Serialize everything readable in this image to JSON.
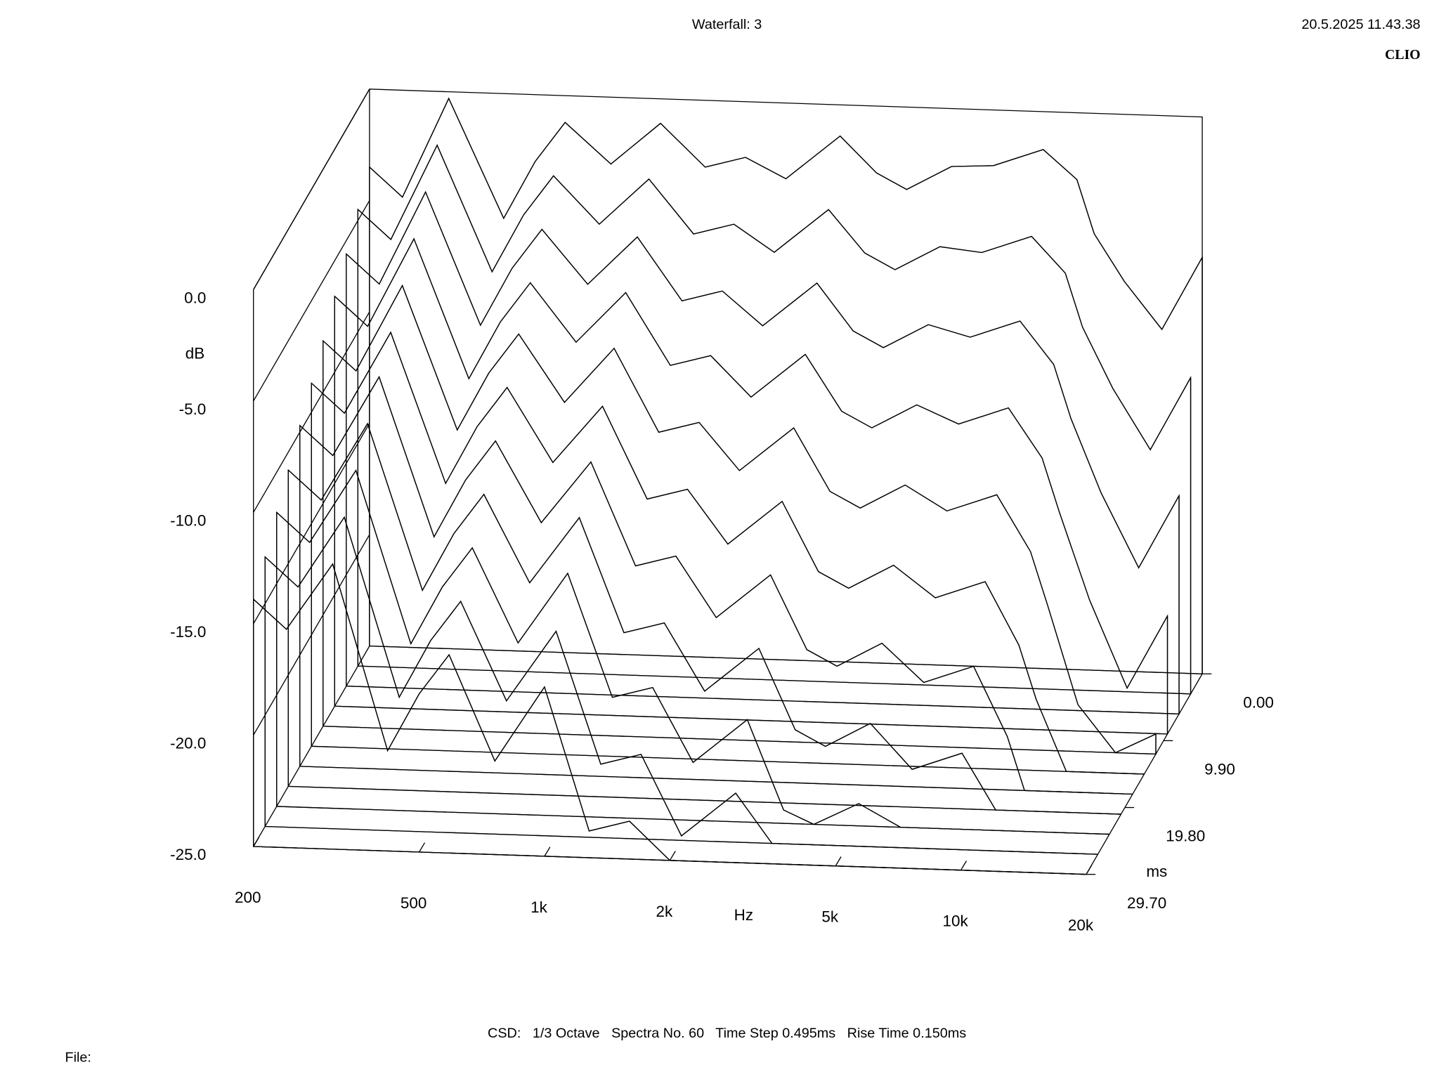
{
  "chart_data": {
    "type": "waterfall",
    "title": "Waterfall: 3",
    "date": "20.5.2025 11.43.38",
    "brand": "CLIO",
    "ylabel": "dB",
    "xlabel": "Hz",
    "zlabel": "ms",
    "footer": "CSD:   1/3 Octave   Spectra No. 60   Time Step 0.495ms   Rise Time 0.150ms",
    "file_label": "File:",
    "color": "#000000",
    "xlog": true,
    "xlim": [
      200,
      20000
    ],
    "xticks": [
      200,
      500,
      {
        "value": 1000,
        "label": "1k"
      },
      {
        "value": 2000,
        "label": "2k"
      },
      {
        "value": 5000,
        "label": "5k"
      },
      {
        "value": 10000,
        "label": "10k"
      },
      {
        "value": 20000,
        "label": "20k"
      }
    ],
    "ylim": [
      -25,
      0
    ],
    "yticks": [
      {
        "value": 0,
        "label": "0.0"
      },
      {
        "value": -5,
        "label": "-5.0"
      },
      {
        "value": -10,
        "label": "-10.0"
      },
      {
        "value": -15,
        "label": "-15.0"
      },
      {
        "value": -20,
        "label": "-20.0"
      },
      {
        "value": -25,
        "label": "-25.0"
      }
    ],
    "zlim": [
      0,
      29.7
    ],
    "zticks": [
      {
        "value": 0,
        "label": "0.00"
      },
      {
        "value": 9.9,
        "label": "9.90"
      },
      {
        "value": 19.8,
        "label": "19.80"
      },
      {
        "value": 29.7,
        "label": "29.70"
      }
    ],
    "x": [
      200,
      240,
      310,
      420,
      500,
      590,
      760,
      1000,
      1280,
      1600,
      2000,
      2700,
      3300,
      3900,
      5000,
      6300,
      8300,
      10000,
      11000,
      13000,
      16000,
      20000
    ],
    "z": [
      0,
      2.97,
      5.94,
      8.91,
      11.88,
      14.85,
      17.82,
      20.79,
      23.76,
      26.73,
      29.7
    ],
    "series": [
      {
        "values": [
          -3.5,
          -4.8,
          -0.3,
          -5.6,
          -3.0,
          -1.2,
          -3.0,
          -1.1,
          -3.0,
          -2.5,
          -3.4,
          -1.4,
          -3.0,
          -3.7,
          -2.6,
          -2.5,
          -1.7,
          -3.0,
          -5.4,
          -7.5,
          -9.6,
          -6.3
        ]
      },
      {
        "values": [
          -4.5,
          -5.8,
          -1.5,
          -7.1,
          -4.5,
          -2.7,
          -4.8,
          -2.7,
          -5.1,
          -4.6,
          -5.8,
          -3.8,
          -5.7,
          -6.4,
          -5.3,
          -5.5,
          -4.7,
          -6.3,
          -8.7,
          -11.4,
          -14.1,
          -10.8
        ]
      },
      {
        "values": [
          -5.6,
          -6.9,
          -2.7,
          -8.6,
          -6.0,
          -4.2,
          -6.6,
          -4.4,
          -7.2,
          -6.7,
          -8.2,
          -6.2,
          -8.3,
          -9.0,
          -7.9,
          -8.4,
          -7.6,
          -9.5,
          -11.9,
          -15.2,
          -18.5,
          -15.2
        ]
      },
      {
        "values": [
          -6.6,
          -7.9,
          -3.9,
          -10.1,
          -7.5,
          -5.7,
          -8.3,
          -6.0,
          -9.2,
          -8.7,
          -10.5,
          -8.5,
          -11.0,
          -11.7,
          -10.6,
          -11.4,
          -10.6,
          -12.8,
          -15.2,
          -19.1,
          -23.0,
          -19.7
        ]
      },
      {
        "values": [
          -7.7,
          -9.0,
          -5.1,
          -11.5,
          -8.9,
          -7.1,
          -10.1,
          -7.6,
          -11.3,
          -10.8,
          -12.9,
          -10.9,
          -13.7,
          -14.4,
          -13.3,
          -14.4,
          -13.6,
          -16.1,
          -18.5,
          -22.9,
          -25.0,
          -24.1
        ]
      },
      {
        "values": [
          -8.7,
          -10.0,
          -6.3,
          -13.0,
          -10.4,
          -8.6,
          -11.9,
          -9.3,
          -13.4,
          -12.9,
          -15.3,
          -13.3,
          -16.4,
          -17.1,
          -16.0,
          -17.4,
          -16.6,
          -19.4,
          -21.8,
          -25.0,
          -25.0,
          -25.0
        ]
      },
      {
        "values": [
          -9.7,
          -11.0,
          -7.4,
          -14.5,
          -11.9,
          -10.1,
          -13.7,
          -10.9,
          -15.5,
          -15.0,
          -17.7,
          -15.7,
          -19.0,
          -19.7,
          -18.6,
          -20.3,
          -19.5,
          -22.6,
          -25.0,
          -25.0,
          -25.0,
          -25.0
        ]
      },
      {
        "values": [
          -10.8,
          -12.1,
          -8.6,
          -16.0,
          -13.4,
          -11.6,
          -15.5,
          -12.5,
          -17.6,
          -17.1,
          -20.1,
          -18.1,
          -21.7,
          -22.4,
          -21.3,
          -23.3,
          -22.5,
          -25.0,
          -25.0,
          -25.0,
          -25.0,
          -25.0
        ]
      },
      {
        "values": [
          -11.8,
          -13.1,
          -9.8,
          -17.5,
          -14.9,
          -13.1,
          -17.3,
          -14.1,
          -19.6,
          -19.1,
          -22.4,
          -20.4,
          -24.4,
          -25.0,
          -24.0,
          -25.0,
          -25.0,
          -25.0,
          -25.0,
          -25.0,
          -25.0,
          -25.0
        ]
      },
      {
        "values": [
          -12.9,
          -14.2,
          -11.0,
          -19.0,
          -16.4,
          -14.6,
          -19.0,
          -15.8,
          -21.7,
          -21.2,
          -24.8,
          -22.8,
          -25.0,
          -25.0,
          -25.0,
          -25.0,
          -25.0,
          -25.0,
          -25.0,
          -25.0,
          -25.0,
          -25.0
        ]
      },
      {
        "values": [
          -13.9,
          -15.2,
          -12.2,
          -20.5,
          -17.9,
          -16.1,
          -20.8,
          -17.4,
          -23.8,
          -23.3,
          -25.0,
          -25.0,
          -25.0,
          -25.0,
          -25.0,
          -25.0,
          -25.0,
          -25.0,
          -25.0,
          -25.0,
          -25.0,
          -25.0
        ]
      }
    ]
  }
}
